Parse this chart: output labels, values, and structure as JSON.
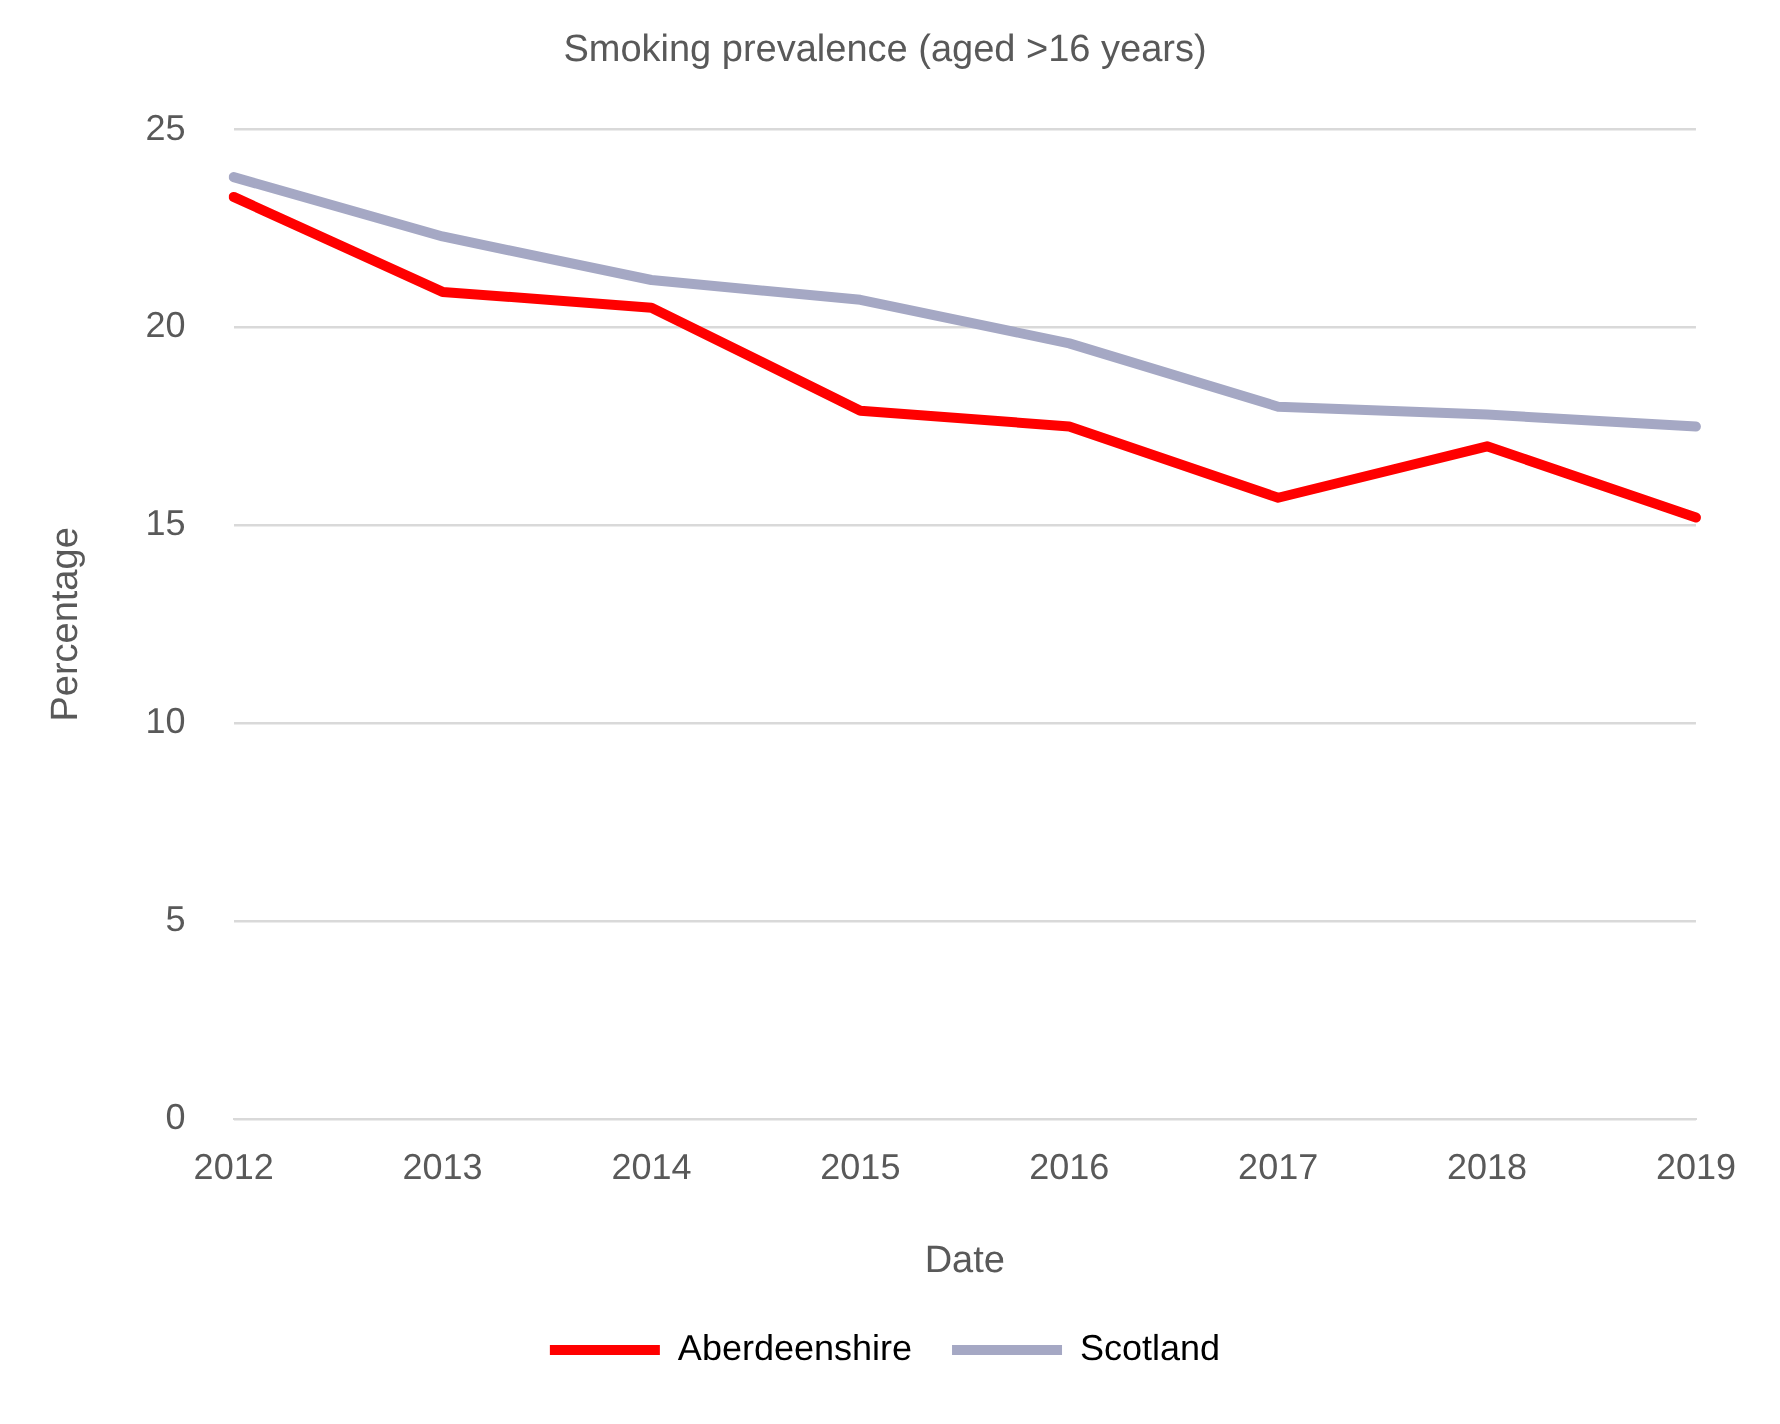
{
  "chart_data": {
    "type": "line",
    "title": "Smoking prevalence (aged >16 years)",
    "xlabel": "Date",
    "ylabel": "Percentage",
    "categories": [
      "2012",
      "2013",
      "2014",
      "2015",
      "2016",
      "2017",
      "2018",
      "2019"
    ],
    "series": [
      {
        "name": "Aberdeenshire",
        "color": "#ff0000",
        "values": [
          23.3,
          20.9,
          20.5,
          17.9,
          17.5,
          15.7,
          17.0,
          15.2
        ]
      },
      {
        "name": "Scotland",
        "color": "#a5a8c4",
        "values": [
          23.8,
          22.3,
          21.2,
          20.7,
          19.6,
          18.0,
          17.8,
          17.5
        ]
      }
    ],
    "ylim": [
      0,
      25
    ],
    "yticks": [
      0,
      5,
      10,
      15,
      20,
      25
    ],
    "grid": "y",
    "legend": "bottom",
    "marker": "none",
    "line_style": "solid"
  }
}
